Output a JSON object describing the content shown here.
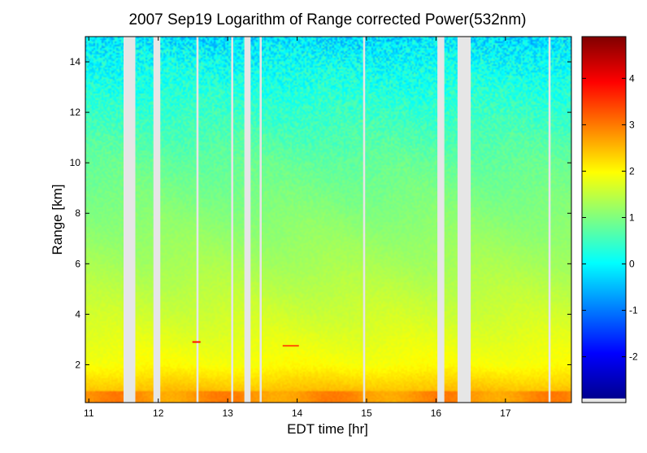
{
  "chart_data": {
    "type": "heatmap",
    "title": "2007 Sep19  Logarithm of Range corrected Power(532nm)",
    "xlabel": "EDT time [hr]",
    "ylabel": "Range [km]",
    "xlim": [
      10.95,
      17.95
    ],
    "ylim": [
      0.5,
      15.0
    ],
    "x_ticks": [
      11,
      12,
      13,
      14,
      15,
      16,
      17
    ],
    "y_ticks": [
      2,
      4,
      6,
      8,
      10,
      12,
      14
    ],
    "colorbar": {
      "colormap": "jet",
      "range": [
        -2.9,
        4.9
      ],
      "ticks": [
        -2,
        -1,
        0,
        1,
        2,
        3,
        4
      ]
    },
    "data_gaps_hr": [
      [
        11.5,
        11.67
      ],
      [
        11.93,
        12.03
      ],
      [
        12.55,
        12.58
      ],
      [
        13.05,
        13.08
      ],
      [
        13.24,
        13.33
      ],
      [
        13.46,
        13.49
      ],
      [
        14.95,
        14.98
      ],
      [
        16.02,
        16.12
      ],
      [
        16.31,
        16.5
      ],
      [
        17.62,
        17.65
      ]
    ],
    "value_profile": [
      {
        "range_km": 0.5,
        "value": 2.9
      },
      {
        "range_km": 0.9,
        "value": 2.5
      },
      {
        "range_km": 2.0,
        "value": 1.95
      },
      {
        "range_km": 4.0,
        "value": 1.6
      },
      {
        "range_km": 6.0,
        "value": 1.3
      },
      {
        "range_km": 8.0,
        "value": 1.05
      },
      {
        "range_km": 10.0,
        "value": 0.8
      },
      {
        "range_km": 12.0,
        "value": 0.45
      },
      {
        "range_km": 14.0,
        "value": 0.1
      },
      {
        "range_km": 15.0,
        "value": -0.2
      }
    ],
    "features": [
      {
        "time_hr": 12.55,
        "range_km": 2.9,
        "value": 3.8
      },
      {
        "time_hr": 13.85,
        "range_km": 2.75,
        "value": 3.3
      }
    ],
    "grid": false,
    "legend": "colorbar-right"
  }
}
